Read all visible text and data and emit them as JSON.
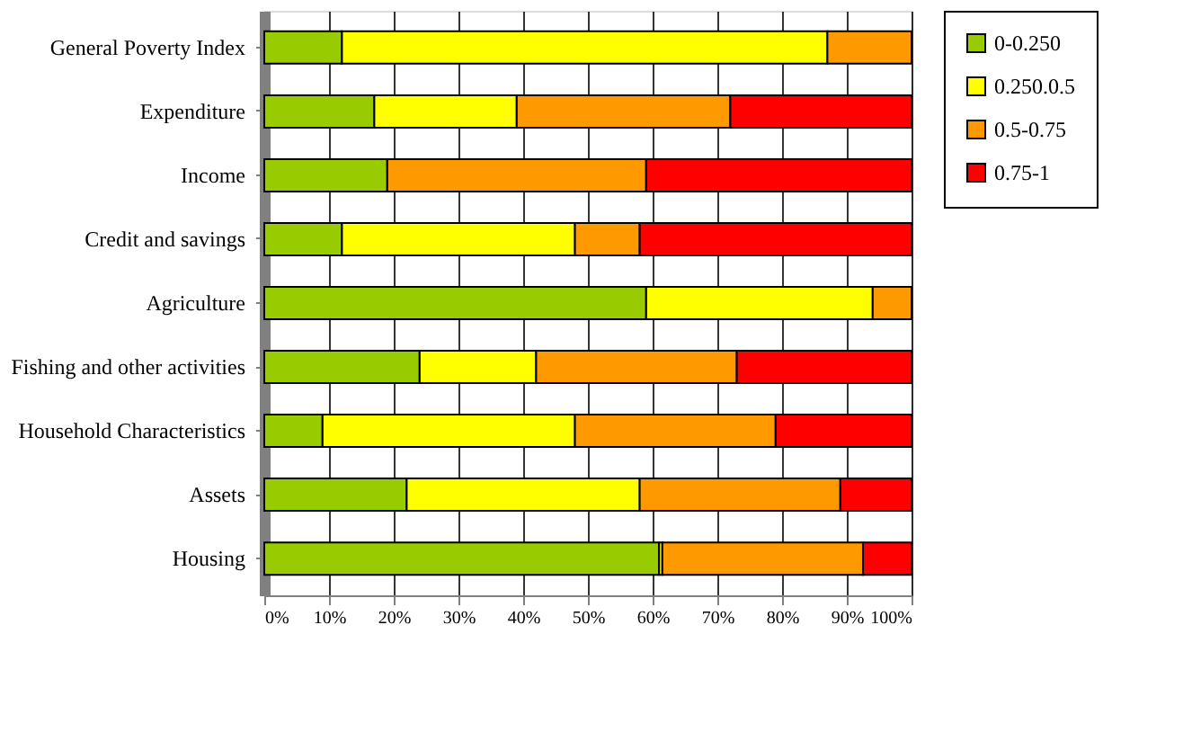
{
  "chart_data": {
    "type": "bar",
    "orientation": "horizontal",
    "stacked": true,
    "categories": [
      "General Poverty Index",
      "Expenditure",
      "Income",
      "Credit and savings",
      "Agriculture",
      "Fishing and other activities",
      "Household Characteristics",
      "Assets",
      "Housing"
    ],
    "series": [
      {
        "name": "0-0.250",
        "color": "#99cc00",
        "values": [
          12,
          17,
          19,
          12,
          59,
          24,
          9,
          22,
          61
        ]
      },
      {
        "name": "0.250.0.5",
        "color": "#ffff00",
        "values": [
          75,
          22,
          null,
          36,
          35,
          18,
          39,
          36,
          0.5
        ]
      },
      {
        "name": "0.5-0.75",
        "color": "#ff9900",
        "values": [
          13,
          33,
          40,
          10,
          6,
          31,
          31,
          31,
          31
        ]
      },
      {
        "name": "0.75-1",
        "color": "#ff0000",
        "values": [
          null,
          28,
          41,
          42,
          null,
          27,
          21,
          11,
          7.5
        ]
      }
    ],
    "xlim": [
      0,
      100
    ],
    "xticks": [
      {
        "value": 0,
        "label": "0%"
      },
      {
        "value": 10,
        "label": "10%"
      },
      {
        "value": 20,
        "label": "20%"
      },
      {
        "value": 30,
        "label": "30%"
      },
      {
        "value": 40,
        "label": "40%"
      },
      {
        "value": 50,
        "label": "50%"
      },
      {
        "value": 60,
        "label": "60%"
      },
      {
        "value": 70,
        "label": "70%"
      },
      {
        "value": 80,
        "label": "80%"
      },
      {
        "value": 90,
        "label": "90%"
      },
      {
        "value": 100,
        "label": "100%"
      }
    ],
    "grid": "x",
    "legend": "right"
  }
}
